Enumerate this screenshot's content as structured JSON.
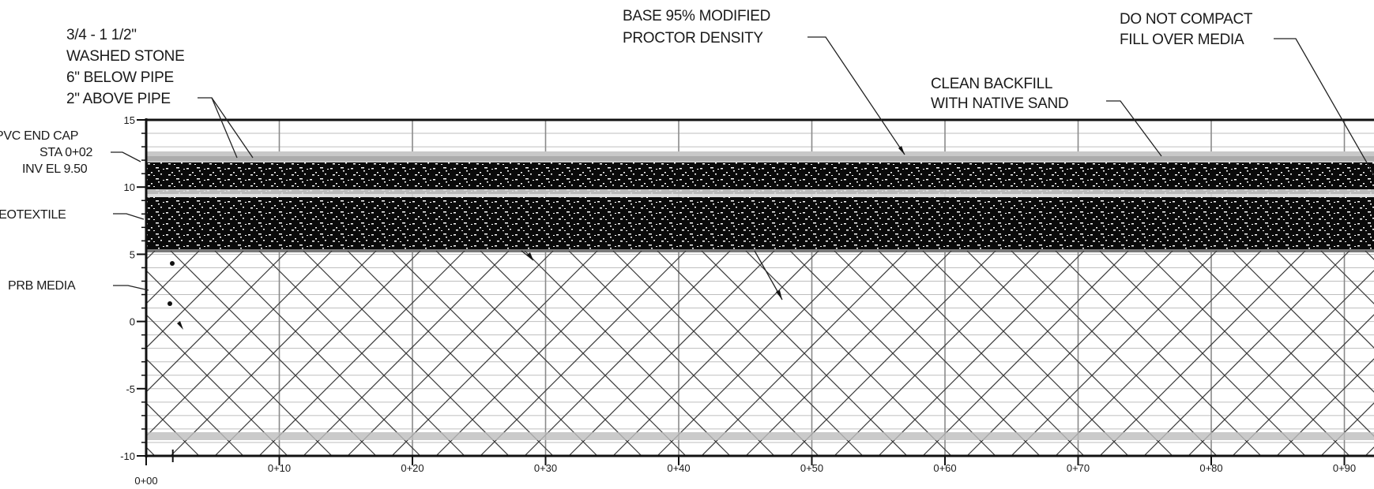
{
  "callouts": {
    "washed_stone": [
      "3/4 - 1 1/2\"",
      "WASHED STONE",
      "6\" BELOW PIPE",
      "2\" ABOVE PIPE"
    ],
    "base_density": [
      "BASE 95% MODIFIED",
      "PROCTOR  DENSITY"
    ],
    "clean_backfill": [
      "CLEAN BACKFILL",
      "WITH NATIVE SAND"
    ],
    "do_not_compact": [
      "DO NOT COMPACT",
      "FILL OVER MEDIA"
    ],
    "pvc_end_cap": [
      "PVC END CAP",
      "STA 0+02",
      "INV EL 9.50"
    ],
    "geotextile": "GEOTEXTILE",
    "prb_media": "PRB MEDIA"
  },
  "axis": {
    "y_ticks": [
      "15",
      "10",
      "5",
      "0",
      "-5",
      "-10"
    ],
    "x_ticks": [
      "0+00",
      "0+10",
      "0+20",
      "0+30",
      "0+40",
      "0+50",
      "0+60",
      "0+70",
      "0+80",
      "0+90"
    ]
  },
  "colors": {
    "ink": "#111111",
    "grid": "#8a8a8a",
    "media_hatch": "#3a3a3a",
    "stone_fill": "#0a0a0a",
    "band": "#bdbdbd"
  }
}
